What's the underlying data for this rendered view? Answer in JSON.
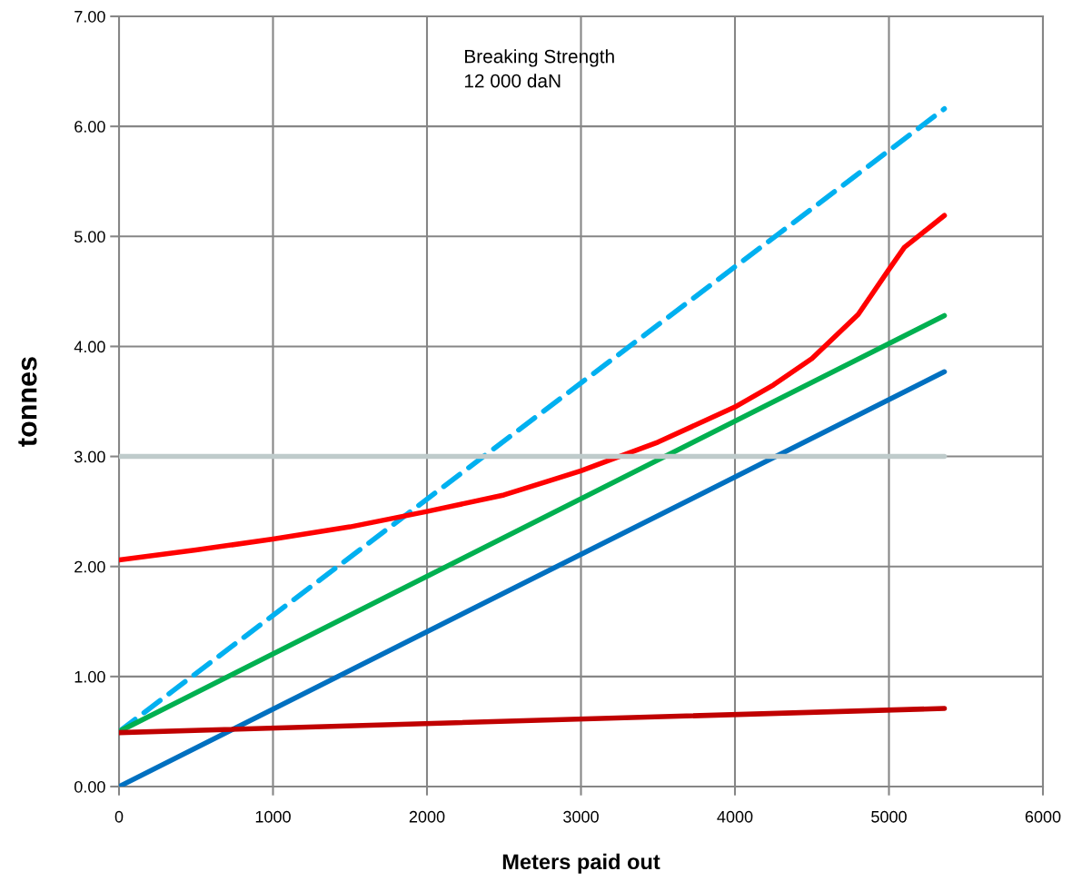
{
  "chart_data": {
    "type": "line",
    "xlabel": "Meters paid out",
    "ylabel": "tonnes",
    "xlim": [
      0,
      6000
    ],
    "xticks": [
      0,
      1000,
      2000,
      3000,
      4000,
      5000,
      6000
    ],
    "ylim": [
      0,
      7
    ],
    "yticks": [
      {
        "value": 0,
        "label": "0.00"
      },
      {
        "value": 1,
        "label": "1.00"
      },
      {
        "value": 2,
        "label": "2.00"
      },
      {
        "value": 3,
        "label": "3.00"
      },
      {
        "value": 4,
        "label": "4.00"
      },
      {
        "value": 5,
        "label": "5.00"
      },
      {
        "value": 6,
        "label": "6.00"
      },
      {
        "value": 7,
        "label": "7.00"
      }
    ],
    "grid": true,
    "legend": false,
    "marker": "none",
    "annotations": [
      "Breaking Strength\n12 000 daN"
    ],
    "series": [
      {
        "color": "#00b0f0",
        "line_style": "dashed",
        "x": [
          0,
          5360
        ],
        "values": [
          0.5,
          6.16
        ]
      },
      {
        "color": "#ff0000",
        "x": [
          0,
          500,
          1000,
          1500,
          2000,
          2500,
          2775,
          3000,
          3500,
          4000,
          4250,
          4500,
          4800,
          5000,
          5100,
          5360
        ],
        "values": [
          2.06,
          2.15,
          2.25,
          2.36,
          2.5,
          2.65,
          2.77,
          2.87,
          3.13,
          3.45,
          3.65,
          3.89,
          4.29,
          4.7,
          4.9,
          5.19
        ]
      },
      {
        "color": "#00b050",
        "x": [
          0,
          5360
        ],
        "values": [
          0.5,
          4.28
        ]
      },
      {
        "color": "#0070c0",
        "x": [
          0,
          5360
        ],
        "values": [
          0,
          3.77
        ]
      },
      {
        "color": "#c00000",
        "x": [
          0,
          5360
        ],
        "values": [
          0.49,
          0.71
        ]
      },
      {
        "color": "#bfcbcb",
        "x": [
          0,
          5360
        ],
        "values": [
          3,
          3
        ]
      }
    ]
  }
}
